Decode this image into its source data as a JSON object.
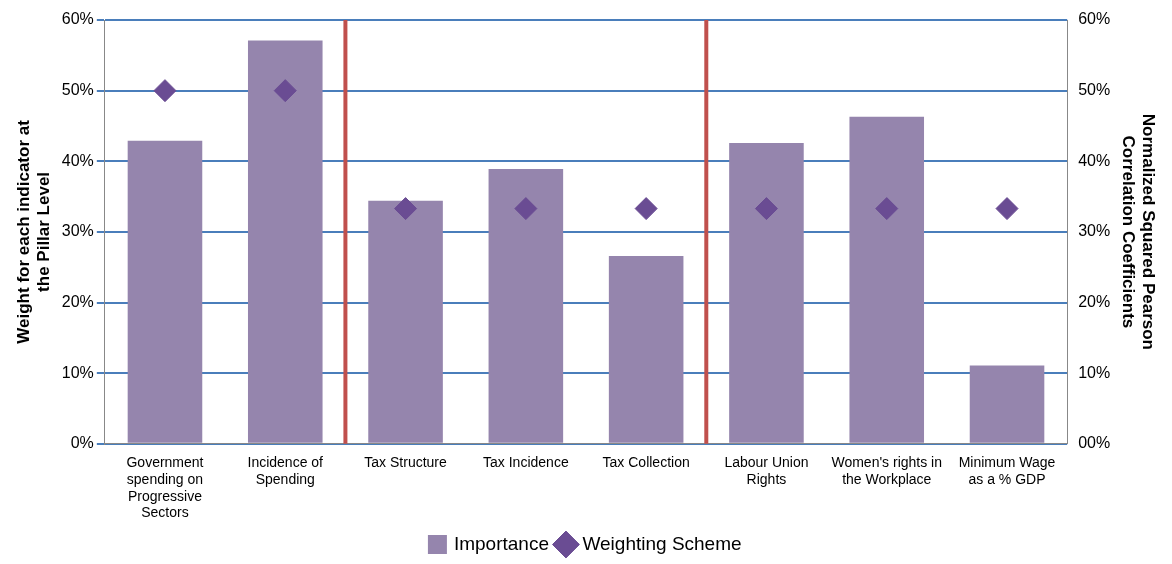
{
  "chart_data": {
    "type": "bar",
    "categories": [
      "Government spending on Progressive Sectors",
      "Incidence of Spending",
      "Tax Structure",
      "Tax Incidence",
      "Tax Collection",
      "Labour Union Rights",
      "Women's rights in the Workplace",
      "Minimum Wage as a % GDP"
    ],
    "series": [
      {
        "name": "Importance",
        "color": "#9585ad",
        "values": [
          42.9,
          57.1,
          34.4,
          38.9,
          26.6,
          42.6,
          46.3,
          11.1
        ]
      },
      {
        "name": "Weighting Scheme",
        "type": "scatter",
        "axis": "y2",
        "color": "#6a4c93",
        "values": [
          50,
          50,
          33.3,
          33.3,
          33.3,
          33.3,
          33.3,
          33.3
        ]
      }
    ],
    "ylabel": "Weight for each indicator at the Pillar Level",
    "y2label": "Normalized Squared Pearson Correlation Coefficients",
    "ylim": [
      0,
      60
    ],
    "yticks": [
      {
        "value": 0,
        "label": "0%"
      },
      {
        "value": 10,
        "label": "10%"
      },
      {
        "value": 20,
        "label": "20%"
      },
      {
        "value": 30,
        "label": "30%"
      },
      {
        "value": 40,
        "label": "40%"
      },
      {
        "value": 50,
        "label": "50%"
      },
      {
        "value": 60,
        "label": "60%"
      }
    ],
    "y2lim": [
      0,
      60
    ],
    "y2ticks": [
      {
        "value": 0,
        "label": "00%"
      },
      {
        "value": 10,
        "label": "10%"
      },
      {
        "value": 20,
        "label": "20%"
      },
      {
        "value": 30,
        "label": "30%"
      },
      {
        "value": 40,
        "label": "40%"
      },
      {
        "value": 50,
        "label": "50%"
      },
      {
        "value": 60,
        "label": "60%"
      }
    ],
    "grid": "y",
    "marker": "diamond",
    "legend": "bottom"
  }
}
